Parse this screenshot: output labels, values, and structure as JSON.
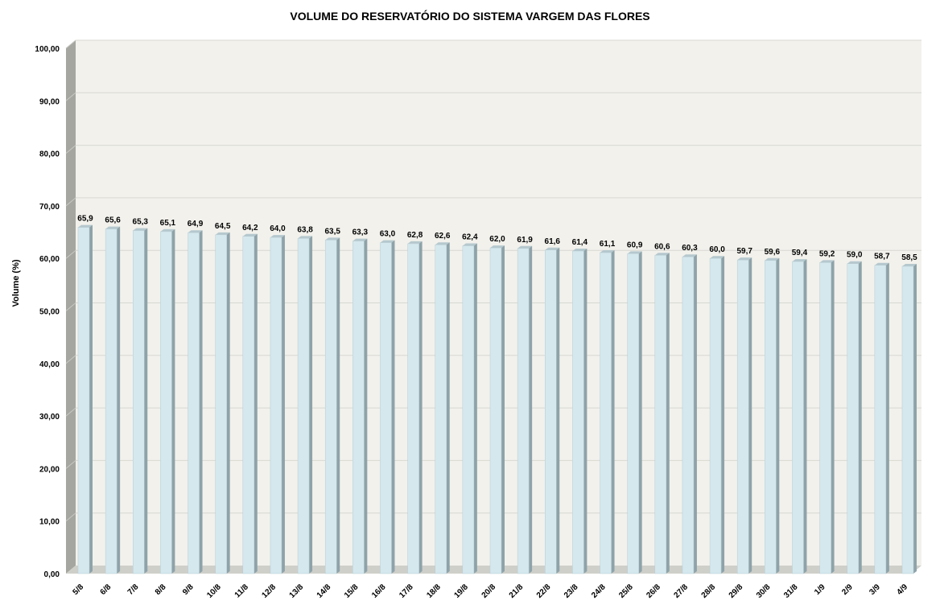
{
  "chart_data": {
    "type": "bar",
    "title": "VOLUME DO RESERVATÓRIO DO SISTEMA VARGEM DAS FLORES",
    "xlabel": "",
    "ylabel": "Volume (%)",
    "ylim": [
      0,
      100
    ],
    "yticks": [
      "0,00",
      "10,00",
      "20,00",
      "30,00",
      "40,00",
      "50,00",
      "60,00",
      "70,00",
      "80,00",
      "90,00",
      "100,00"
    ],
    "categories": [
      "5/8",
      "6/8",
      "7/8",
      "8/8",
      "9/8",
      "10/8",
      "11/8",
      "12/8",
      "13/8",
      "14/8",
      "15/8",
      "16/8",
      "17/8",
      "18/8",
      "19/8",
      "20/8",
      "21/8",
      "22/8",
      "23/8",
      "24/8",
      "25/8",
      "26/8",
      "27/8",
      "28/8",
      "29/8",
      "30/8",
      "31/8",
      "1/9",
      "2/9",
      "3/9",
      "4/9"
    ],
    "values": [
      65.9,
      65.6,
      65.3,
      65.1,
      64.9,
      64.5,
      64.2,
      64.0,
      63.8,
      63.5,
      63.3,
      63.0,
      62.8,
      62.6,
      62.4,
      62.0,
      61.9,
      61.6,
      61.4,
      61.1,
      60.9,
      60.6,
      60.3,
      60.0,
      59.7,
      59.6,
      59.4,
      59.2,
      59.0,
      58.7,
      58.5
    ],
    "data_labels": [
      "65,9",
      "65,6",
      "65,3",
      "65,1",
      "64,9",
      "64,5",
      "64,2",
      "64,0",
      "63,8",
      "63,5",
      "63,3",
      "63,0",
      "62,8",
      "62,6",
      "62,4",
      "62,0",
      "61,9",
      "61,6",
      "61,4",
      "61,1",
      "60,9",
      "60,6",
      "60,3",
      "60,0",
      "59,7",
      "59,6",
      "59,4",
      "59,2",
      "59,0",
      "58,7",
      "58,5"
    ],
    "grid": true,
    "legend": "none",
    "colors": {
      "bar_front": "#d4e8ee",
      "bar_side": "#8ea3a9",
      "bar_top": "#b5c8ce",
      "plot_back": "#f2f1ec",
      "wall_side": "#a6a6a0",
      "floor": "#cfcfca",
      "gridline": "#d8d8d2"
    }
  }
}
